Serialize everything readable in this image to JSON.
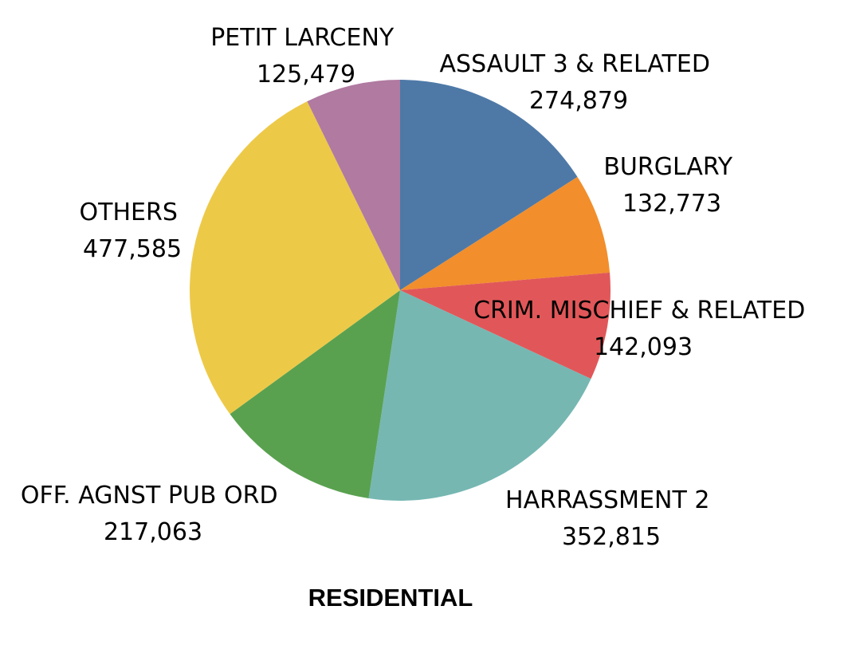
{
  "chart_data": {
    "type": "pie",
    "title": "RESIDENTIAL",
    "start_angle_deg": 0,
    "direction": "clockwise",
    "slices": [
      {
        "label": "ASSAULT 3 & RELATED",
        "value": 274879,
        "value_text": "274,879",
        "color": "#4e79a7"
      },
      {
        "label": "BURGLARY",
        "value": 132773,
        "value_text": "132,773",
        "color": "#f28e2b"
      },
      {
        "label": "CRIM. MISCHIEF & RELATED",
        "value": 142093,
        "value_text": "142,093",
        "color": "#e15759"
      },
      {
        "label": "HARRASSMENT 2",
        "value": 352815,
        "value_text": "352,815",
        "color": "#76b7b2"
      },
      {
        "label": "OFF. AGNST PUB ORD",
        "value": 217063,
        "value_text": "217,063",
        "color": "#59a14f"
      },
      {
        "label": "OTHERS",
        "value": 477585,
        "value_text": "477,585",
        "color": "#edc948"
      },
      {
        "label": "PETIT LARCENY",
        "value": 125479,
        "value_text": "125,479",
        "color": "#b07aa1"
      }
    ]
  }
}
